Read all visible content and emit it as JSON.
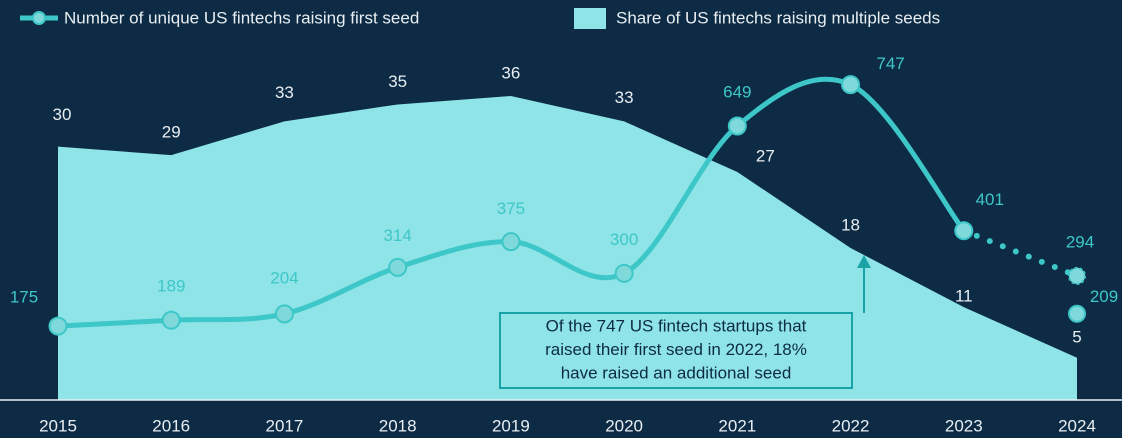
{
  "chart_data": {
    "type": "line",
    "x": [
      2015,
      2016,
      2017,
      2018,
      2019,
      2020,
      2021,
      2022,
      2023,
      2024
    ],
    "series": [
      {
        "name": "Number of unique US fintechs raising first seed",
        "color": "#3ec7c8",
        "values": [
          175,
          189,
          204,
          314,
          375,
          300,
          649,
          747,
          401,
          null
        ],
        "projected_values": [
          null,
          null,
          null,
          null,
          null,
          null,
          null,
          null,
          null,
          294
        ],
        "adjusted_values": [
          null,
          null,
          null,
          null,
          null,
          null,
          null,
          null,
          null,
          209
        ]
      },
      {
        "name": "Share of US fintechs raising multiple seeds",
        "color": "#8ee4e6",
        "axis": "y2",
        "values": [
          30,
          29,
          33,
          35,
          36,
          33,
          27,
          18,
          11,
          5
        ]
      }
    ],
    "ylim": [
      0,
      900
    ],
    "y2lim": [
      0,
      45
    ],
    "annotation": [
      "Of the 747 US fintech startups that",
      "raised their first seed in 2022, 18%",
      "have raised an additional seed"
    ]
  }
}
